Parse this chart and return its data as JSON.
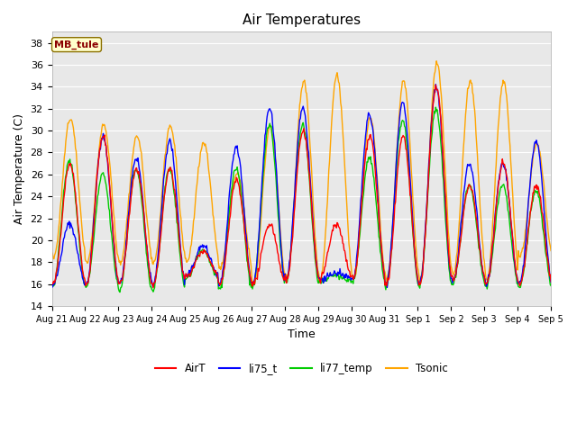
{
  "title": "Air Temperatures",
  "xlabel": "Time",
  "ylabel": "Air Temperature (C)",
  "ylim": [
    14,
    39
  ],
  "yticks": [
    14,
    16,
    18,
    20,
    22,
    24,
    26,
    28,
    30,
    32,
    34,
    36,
    38
  ],
  "axes_bg_color": "#e8e8e8",
  "fig_bg_color": "#ffffff",
  "annotation_text": "MB_tule",
  "annotation_box_color": "#ffffcc",
  "annotation_text_color": "#8b0000",
  "annotation_edge_color": "#8b7000",
  "series_colors": {
    "AirT": "#ff0000",
    "li75_t": "#0000ff",
    "li77_temp": "#00cc00",
    "Tsonic": "#ffa500"
  },
  "series_linewidth": 1.0,
  "xtick_labels": [
    "Aug 21",
    "Aug 22",
    "Aug 23",
    "Aug 24",
    "Aug 25",
    "Aug 26",
    "Aug 27",
    "Aug 28",
    "Aug 29",
    "Aug 30",
    "Aug 31",
    "Sep 1",
    "Sep 2",
    "Sep 3",
    "Sep 4",
    "Sep 5"
  ],
  "daily_min_AirT": [
    16.0,
    16.0,
    16.0,
    15.9,
    16.7,
    15.9,
    16.0,
    16.5,
    16.5,
    16.5,
    16.0,
    16.0,
    16.3,
    16.0,
    16.0,
    16.5
  ],
  "daily_max_AirT": [
    27.0,
    29.5,
    26.5,
    26.5,
    19.0,
    25.5,
    21.5,
    30.0,
    21.5,
    29.5,
    29.5,
    34.0,
    25.0,
    27.0,
    25.0,
    29.0
  ],
  "daily_min_li75": [
    16.0,
    16.0,
    16.0,
    15.9,
    16.7,
    15.9,
    16.0,
    16.5,
    16.5,
    16.5,
    16.0,
    16.0,
    16.3,
    16.0,
    16.0,
    16.5
  ],
  "daily_max_li75": [
    21.5,
    29.5,
    27.5,
    29.0,
    19.5,
    28.5,
    32.0,
    32.0,
    17.0,
    31.5,
    32.5,
    34.0,
    27.0,
    27.0,
    29.0,
    29.0
  ],
  "daily_min_li77": [
    15.8,
    15.8,
    15.5,
    15.5,
    16.5,
    15.5,
    15.8,
    16.2,
    16.2,
    16.2,
    15.8,
    15.8,
    16.0,
    15.8,
    15.8,
    16.2
  ],
  "daily_max_li77": [
    27.2,
    26.0,
    26.5,
    26.5,
    19.0,
    26.5,
    30.5,
    30.5,
    16.8,
    27.5,
    31.0,
    32.0,
    25.0,
    25.0,
    24.5,
    27.0
  ],
  "daily_min_tsonic": [
    18.5,
    18.0,
    18.0,
    18.0,
    18.0,
    17.5,
    16.0,
    16.5,
    16.5,
    16.5,
    16.5,
    16.5,
    17.0,
    16.5,
    18.5,
    19.0
  ],
  "daily_max_tsonic": [
    31.1,
    30.5,
    29.5,
    30.5,
    28.9,
    26.0,
    30.4,
    34.5,
    35.0,
    31.1,
    34.5,
    36.2,
    34.5,
    34.5,
    28.8,
    30.5
  ]
}
